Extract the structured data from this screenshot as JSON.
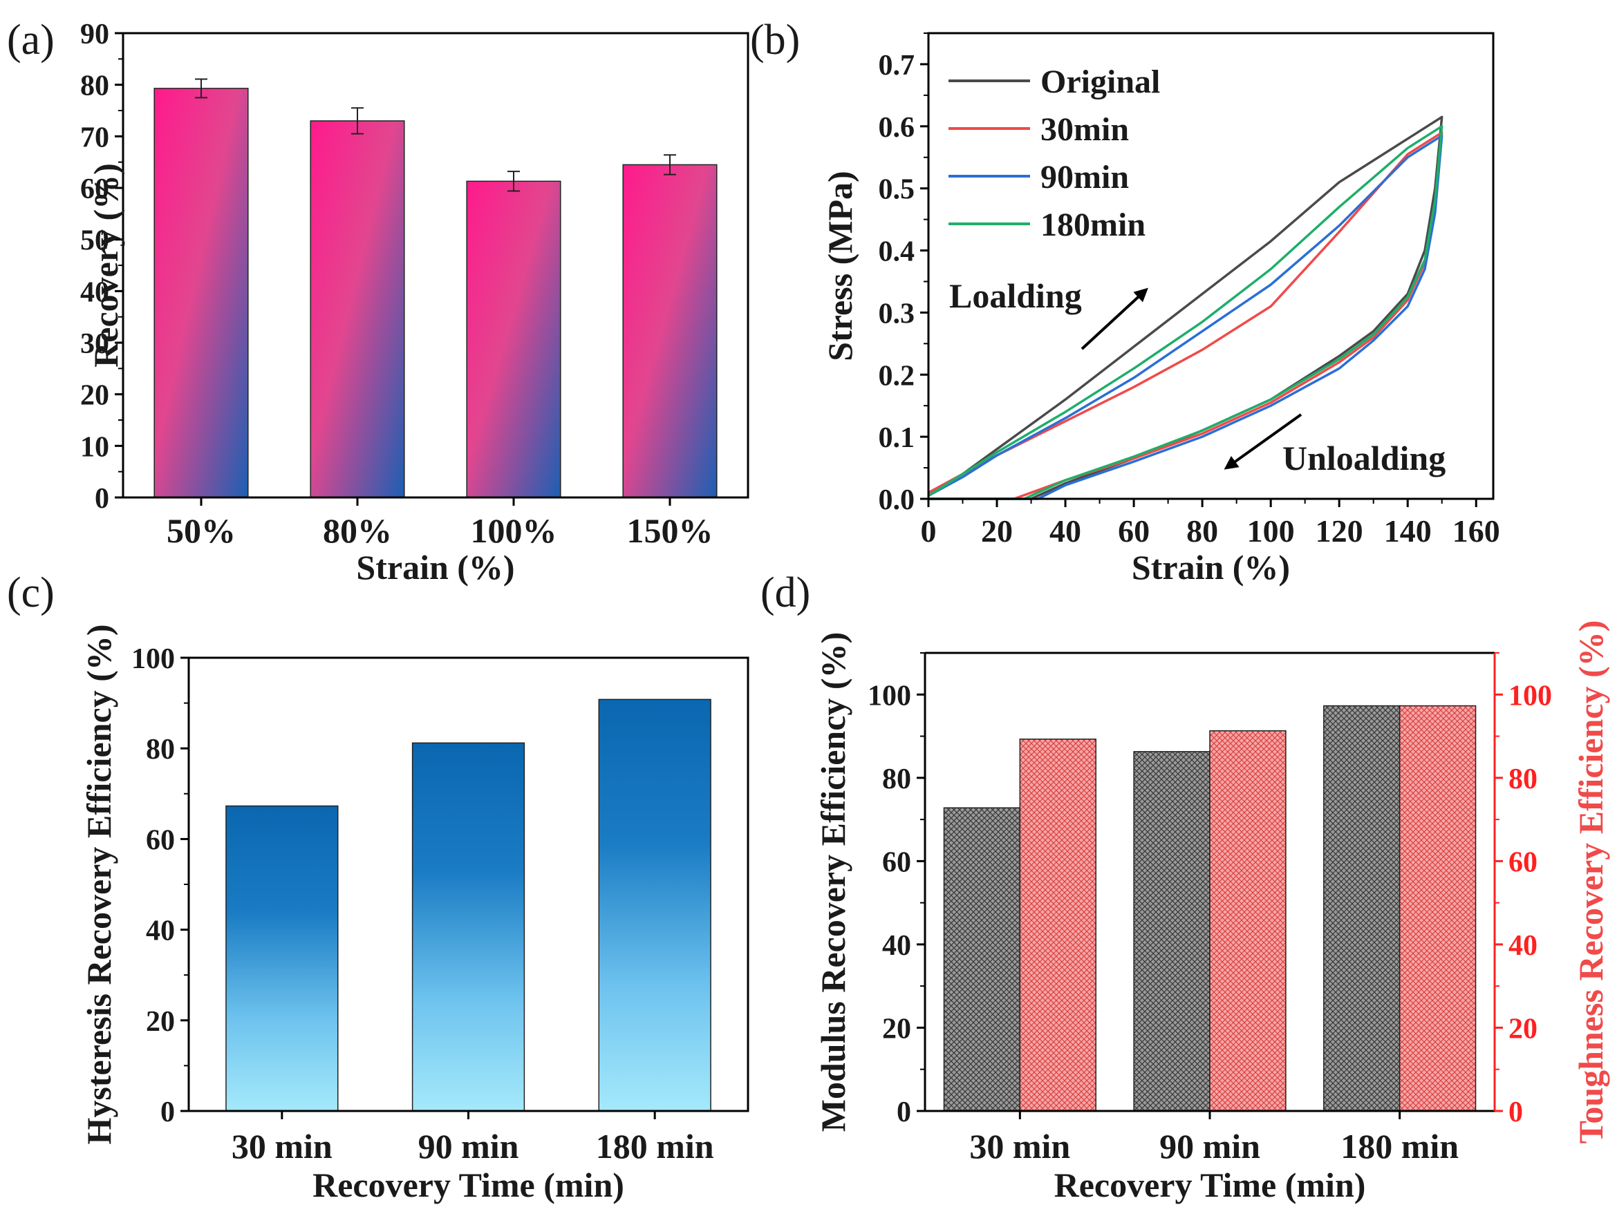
{
  "panels": {
    "a": {
      "label": "(a)"
    },
    "b": {
      "label": "(b)"
    },
    "c": {
      "label": "(c)"
    },
    "d": {
      "label": "(d)"
    }
  },
  "chart_data": [
    {
      "id": "a",
      "type": "bar",
      "categories": [
        "50%",
        "80%",
        "100%",
        "150%"
      ],
      "values": [
        79.3,
        73.0,
        61.3,
        64.5
      ],
      "errors": [
        1.8,
        2.5,
        1.9,
        1.9
      ],
      "xlabel": "Strain (%)",
      "ylabel": "Recovery (%)",
      "ylim": [
        0,
        90
      ],
      "yticks": [
        0,
        10,
        20,
        30,
        40,
        50,
        60,
        70,
        80,
        90
      ],
      "colors": {
        "top": "#ff1a8c",
        "mid": "#e2468f",
        "bottom": "#1c5fb3"
      }
    },
    {
      "id": "b",
      "type": "line",
      "xlabel": "Strain (%)",
      "ylabel": "Stress (MPa)",
      "xlim": [
        0,
        165
      ],
      "ylim": [
        0,
        0.75
      ],
      "xticks": [
        0,
        20,
        40,
        60,
        80,
        100,
        120,
        140,
        160
      ],
      "yticks": [
        "0.0",
        "0.1",
        "0.2",
        "0.3",
        "0.4",
        "0.5",
        "0.6",
        "0.7"
      ],
      "legend_position": "top-left",
      "series": [
        {
          "name": "Original",
          "color": "#4a4a4a",
          "loading": [
            [
              0,
              0.005
            ],
            [
              10,
              0.04
            ],
            [
              20,
              0.08
            ],
            [
              40,
              0.16
            ],
            [
              60,
              0.245
            ],
            [
              80,
              0.33
            ],
            [
              100,
              0.415
            ],
            [
              120,
              0.51
            ],
            [
              140,
              0.58
            ],
            [
              150,
              0.615
            ]
          ],
          "unloading": [
            [
              150,
              0.615
            ],
            [
              148,
              0.5
            ],
            [
              145,
              0.4
            ],
            [
              140,
              0.33
            ],
            [
              130,
              0.27
            ],
            [
              120,
              0.23
            ],
            [
              100,
              0.16
            ],
            [
              80,
              0.11
            ],
            [
              60,
              0.065
            ],
            [
              40,
              0.025
            ],
            [
              30,
              0.0
            ],
            [
              0,
              0.0
            ]
          ]
        },
        {
          "name": "30min",
          "color": "#f04a4a",
          "loading": [
            [
              0,
              0.01
            ],
            [
              10,
              0.04
            ],
            [
              20,
              0.07
            ],
            [
              40,
              0.125
            ],
            [
              60,
              0.18
            ],
            [
              80,
              0.24
            ],
            [
              100,
              0.31
            ],
            [
              120,
              0.43
            ],
            [
              140,
              0.555
            ],
            [
              150,
              0.59
            ]
          ],
          "unloading": [
            [
              150,
              0.59
            ],
            [
              148,
              0.47
            ],
            [
              145,
              0.38
            ],
            [
              140,
              0.32
            ],
            [
              130,
              0.26
            ],
            [
              120,
              0.22
            ],
            [
              100,
              0.155
            ],
            [
              80,
              0.105
            ],
            [
              60,
              0.065
            ],
            [
              40,
              0.03
            ],
            [
              25,
              0.0
            ],
            [
              0,
              0.0
            ]
          ]
        },
        {
          "name": "90min",
          "color": "#2a6fd6",
          "loading": [
            [
              0,
              0.005
            ],
            [
              10,
              0.035
            ],
            [
              20,
              0.07
            ],
            [
              40,
              0.13
            ],
            [
              60,
              0.195
            ],
            [
              80,
              0.27
            ],
            [
              100,
              0.345
            ],
            [
              120,
              0.44
            ],
            [
              140,
              0.55
            ],
            [
              150,
              0.585
            ]
          ],
          "unloading": [
            [
              150,
              0.585
            ],
            [
              148,
              0.46
            ],
            [
              145,
              0.37
            ],
            [
              140,
              0.31
            ],
            [
              130,
              0.255
            ],
            [
              120,
              0.21
            ],
            [
              100,
              0.15
            ],
            [
              80,
              0.1
            ],
            [
              60,
              0.06
            ],
            [
              40,
              0.022
            ],
            [
              32,
              0.0
            ],
            [
              0,
              0.0
            ]
          ]
        },
        {
          "name": "180min",
          "color": "#1fae6a",
          "loading": [
            [
              0,
              0.005
            ],
            [
              10,
              0.04
            ],
            [
              20,
              0.075
            ],
            [
              40,
              0.14
            ],
            [
              60,
              0.21
            ],
            [
              80,
              0.285
            ],
            [
              100,
              0.37
            ],
            [
              120,
              0.47
            ],
            [
              140,
              0.565
            ],
            [
              150,
              0.6
            ]
          ],
          "unloading": [
            [
              150,
              0.6
            ],
            [
              148,
              0.48
            ],
            [
              145,
              0.385
            ],
            [
              140,
              0.325
            ],
            [
              130,
              0.265
            ],
            [
              120,
              0.225
            ],
            [
              100,
              0.16
            ],
            [
              80,
              0.11
            ],
            [
              60,
              0.068
            ],
            [
              40,
              0.03
            ],
            [
              28,
              0.0
            ],
            [
              0,
              0.0
            ]
          ]
        }
      ],
      "annotations": {
        "loading": "Loalding",
        "unloading": "Unloalding"
      }
    },
    {
      "id": "c",
      "type": "bar",
      "categories": [
        "30 min",
        "90 min",
        "180 min"
      ],
      "values": [
        67.3,
        81.2,
        90.8
      ],
      "xlabel": "Recovery Time (min)",
      "ylabel": "Hysteresis Recovery Efficiency (%)",
      "ylim": [
        0,
        100
      ],
      "yticks": [
        0,
        20,
        40,
        60,
        80,
        100
      ],
      "colors": {
        "top": "#0a67b0",
        "bottom": "#9fe6fa"
      }
    },
    {
      "id": "d",
      "type": "bar",
      "categories": [
        "30 min",
        "90 min",
        "180 min"
      ],
      "xlabel": "Recovery Time (min)",
      "ylabel": "Modulus Recovery Efficiency (%)",
      "ylabel_right": "Toughness Recovery Efficiency (%)",
      "ylim": [
        0,
        110
      ],
      "yticks": [
        0,
        20,
        40,
        60,
        80,
        100
      ],
      "series": [
        {
          "name": "Modulus",
          "values": [
            72.8,
            86.3,
            97.3
          ],
          "color": "#8a8a8a"
        },
        {
          "name": "Toughness",
          "values": [
            89.3,
            91.3,
            97.3
          ],
          "color": "#f08080"
        }
      ],
      "right_axis_color": "#ff2020"
    }
  ]
}
